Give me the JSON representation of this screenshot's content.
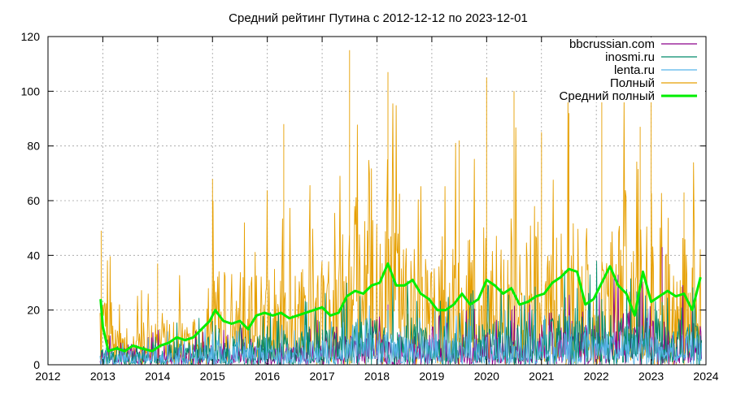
{
  "chart_data": {
    "type": "line",
    "title": "Средний рейтинг Путина с 2012-12-12  по 2023-12-01",
    "xlabel": "",
    "ylabel": "",
    "xlim": [
      2012,
      2024
    ],
    "ylim": [
      0,
      120
    ],
    "x_ticks": [
      "2012",
      "2013",
      "2014",
      "2015",
      "2016",
      "2017",
      "2018",
      "2019",
      "2020",
      "2021",
      "2022",
      "2023",
      "2024"
    ],
    "y_ticks": [
      "0",
      "20",
      "40",
      "60",
      "80",
      "100",
      "120"
    ],
    "grid": true,
    "legend_position": "top-right",
    "colors": {
      "bbcrussian": "#8b008b",
      "inosmi": "#008b6b",
      "lenta": "#56b4e9",
      "full": "#e69f00",
      "avg": "#00ee00"
    },
    "series": [
      {
        "name": "bbcrussian.com",
        "color_key": "bbcrussian",
        "style": "noisy",
        "profile": [
          [
            2013.0,
            4
          ],
          [
            2015.0,
            5
          ],
          [
            2016.0,
            5
          ],
          [
            2018.0,
            8
          ],
          [
            2019.0,
            7
          ],
          [
            2021.0,
            8
          ],
          [
            2022.0,
            10
          ],
          [
            2022.8,
            14
          ],
          [
            2023.9,
            10
          ]
        ],
        "noise_amp": 1.5,
        "peaks": [
          [
            2015.0,
            9
          ],
          [
            2018.2,
            22
          ],
          [
            2021.5,
            18
          ],
          [
            2022.8,
            31
          ],
          [
            2023.2,
            43
          ]
        ]
      },
      {
        "name": "inosmi.ru",
        "color_key": "inosmi",
        "style": "noisy",
        "profile": [
          [
            2013.0,
            4
          ],
          [
            2015.0,
            7
          ],
          [
            2016.0,
            7
          ],
          [
            2018.0,
            12
          ],
          [
            2019.0,
            10
          ],
          [
            2021.0,
            11
          ],
          [
            2022.0,
            14
          ],
          [
            2023.0,
            11
          ],
          [
            2023.9,
            11
          ]
        ],
        "noise_amp": 1.5,
        "peaks": [
          [
            2015.0,
            16
          ],
          [
            2018.2,
            20
          ],
          [
            2022.1,
            24
          ]
        ]
      },
      {
        "name": "lenta.ru",
        "color_key": "lenta",
        "style": "noisy",
        "profile": [
          [
            2013.0,
            3
          ],
          [
            2015.0,
            5
          ],
          [
            2016.0,
            5
          ],
          [
            2018.0,
            8
          ],
          [
            2019.0,
            7
          ],
          [
            2021.0,
            7
          ],
          [
            2022.0,
            8
          ],
          [
            2023.9,
            8
          ]
        ],
        "noise_amp": 1.3,
        "peaks": [
          [
            2015.0,
            12
          ],
          [
            2018.5,
            14
          ],
          [
            2021.8,
            14
          ]
        ]
      },
      {
        "name": "Полный",
        "color_key": "full",
        "style": "noisy",
        "profile": [
          [
            2012.95,
            20
          ],
          [
            2013.3,
            8
          ],
          [
            2014.0,
            11
          ],
          [
            2014.8,
            13
          ],
          [
            2015.0,
            22
          ],
          [
            2016.0,
            23
          ],
          [
            2017.0,
            24
          ],
          [
            2017.5,
            31
          ],
          [
            2018.2,
            40
          ],
          [
            2019.0,
            25
          ],
          [
            2020.0,
            33
          ],
          [
            2021.0,
            32
          ],
          [
            2021.4,
            38
          ],
          [
            2022.2,
            38
          ],
          [
            2022.8,
            33
          ],
          [
            2023.3,
            28
          ],
          [
            2023.9,
            33
          ]
        ],
        "noise_amp": 4,
        "peaks": [
          [
            2012.97,
            49
          ],
          [
            2014.0,
            37
          ],
          [
            2015.0,
            68
          ],
          [
            2016.3,
            88
          ],
          [
            2017.5,
            115
          ],
          [
            2018.2,
            107
          ],
          [
            2019.5,
            82
          ],
          [
            2020.0,
            105
          ],
          [
            2020.5,
            100
          ],
          [
            2021.0,
            85
          ],
          [
            2021.5,
            92
          ],
          [
            2022.1,
            105
          ],
          [
            2022.8,
            87
          ],
          [
            2023.0,
            110
          ],
          [
            2023.6,
            63
          ]
        ]
      },
      {
        "name": "Средний полный",
        "color_key": "avg",
        "style": "line",
        "x": [
          2012.96,
          2013.0,
          2013.1,
          2013.25,
          2013.4,
          2013.55,
          2013.7,
          2013.9,
          2014.05,
          2014.2,
          2014.35,
          2014.5,
          2014.65,
          2014.8,
          2014.95,
          2015.05,
          2015.2,
          2015.35,
          2015.5,
          2015.65,
          2015.8,
          2015.95,
          2016.1,
          2016.25,
          2016.4,
          2016.55,
          2016.7,
          2016.85,
          2017.0,
          2017.15,
          2017.3,
          2017.45,
          2017.6,
          2017.75,
          2017.9,
          2018.05,
          2018.2,
          2018.35,
          2018.5,
          2018.65,
          2018.8,
          2018.95,
          2019.1,
          2019.25,
          2019.4,
          2019.55,
          2019.7,
          2019.85,
          2020.0,
          2020.15,
          2020.3,
          2020.45,
          2020.6,
          2020.75,
          2020.9,
          2021.05,
          2021.2,
          2021.35,
          2021.5,
          2021.65,
          2021.8,
          2021.95,
          2022.1,
          2022.25,
          2022.4,
          2022.55,
          2022.7,
          2022.85,
          2023.0,
          2023.15,
          2023.3,
          2023.45,
          2023.6,
          2023.75,
          2023.9
        ],
        "values": [
          24,
          14,
          5,
          6,
          5,
          7,
          6,
          5,
          7,
          8,
          10,
          9,
          10,
          13,
          16,
          20,
          16,
          15,
          16,
          13,
          18,
          19,
          18,
          19,
          17,
          18,
          19,
          20,
          21,
          18,
          19,
          25,
          27,
          26,
          29,
          30,
          37,
          29,
          29,
          31,
          26,
          24,
          20,
          20,
          22,
          26,
          22,
          24,
          31,
          29,
          26,
          28,
          22,
          23,
          25,
          26,
          30,
          32,
          35,
          34,
          22,
          24,
          30,
          36,
          29,
          26,
          18,
          34,
          23,
          25,
          27,
          25,
          26,
          20,
          32
        ]
      }
    ]
  }
}
